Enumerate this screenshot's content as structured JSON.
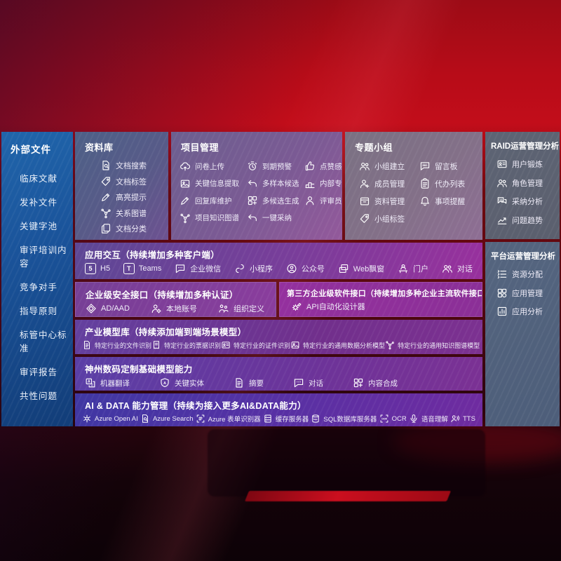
{
  "colors": {
    "background_red": "#c20d1a",
    "sidebar_blue": "#1a539a",
    "interaction_purple": "#98309d",
    "aidata_indigo": "#3f37a3",
    "text": "#ffffff"
  },
  "sidebar": {
    "title": "外部文件",
    "items": [
      "临床文献",
      "发补文件",
      "关键字池",
      "审评培训内容",
      "竞争对手",
      "指导原则",
      "标管中心标准",
      "审评报告",
      "共性问题"
    ]
  },
  "panels": {
    "repository": {
      "title": "资料库",
      "items": [
        {
          "icon": "doc-search",
          "label": "文档搜索"
        },
        {
          "icon": "tag",
          "label": "文档标签"
        },
        {
          "icon": "pencil",
          "label": "高亮提示"
        },
        {
          "icon": "graph",
          "label": "关系图谱"
        },
        {
          "icon": "doc-copy",
          "label": "文档分类"
        }
      ]
    },
    "project": {
      "title": "项目管理",
      "items": [
        {
          "icon": "cloud-upload",
          "label": "问卷上传"
        },
        {
          "icon": "alarm",
          "label": "到期预警"
        },
        {
          "icon": "thumb-up",
          "label": "点赞感谢"
        },
        {
          "icon": "image",
          "label": "关键信息提取"
        },
        {
          "icon": "curve-arrow",
          "label": "多样本候选"
        },
        {
          "icon": "podium",
          "label": "内部专家排名"
        },
        {
          "icon": "pencil",
          "label": "回复库维护"
        },
        {
          "icon": "puzzle",
          "label": "多候选生成"
        },
        {
          "icon": "person",
          "label": "评审员画像"
        },
        {
          "icon": "graph",
          "label": "项目知识图谱"
        },
        {
          "icon": "curve-arrow",
          "label": "一键采纳"
        }
      ]
    },
    "groups": {
      "title": "专题小组",
      "items": [
        {
          "icon": "people",
          "label": "小组建立"
        },
        {
          "icon": "bbs-board",
          "label": "留言板"
        },
        {
          "icon": "person-add",
          "label": "成员管理"
        },
        {
          "icon": "clipboard",
          "label": "代办列表"
        },
        {
          "icon": "archive",
          "label": "资料管理"
        },
        {
          "icon": "bell",
          "label": "事项提醒"
        },
        {
          "icon": "tag",
          "label": "小组标签"
        }
      ]
    },
    "raid": {
      "title": "RAID运营管理分析",
      "items": [
        {
          "icon": "id-card",
          "label": "用户锻炼"
        },
        {
          "icon": "people",
          "label": "角色管理"
        },
        {
          "icon": "chat-qa",
          "label": "采纳分析"
        },
        {
          "icon": "trend",
          "label": "问题趋势"
        }
      ]
    },
    "platform": {
      "title": "平台运营管理分析",
      "items": [
        {
          "icon": "allocate-list",
          "label": "资源分配"
        },
        {
          "icon": "app-grid",
          "label": "应用管理"
        },
        {
          "icon": "app-chart",
          "label": "应用分析"
        }
      ]
    },
    "interaction": {
      "title": "应用交互（持续增加多种客户端）",
      "items": [
        {
          "icon": "h5-logo",
          "badge": "5",
          "label": "H5"
        },
        {
          "icon": "teams-logo",
          "badge": "T",
          "label": "Teams"
        },
        {
          "icon": "bubble-dots",
          "label": "企业微信"
        },
        {
          "icon": "scurve",
          "label": "小程序"
        },
        {
          "icon": "person-circle",
          "label": "公众号"
        },
        {
          "icon": "stack",
          "label": "Web飘窗"
        },
        {
          "icon": "person-desk",
          "label": "门户"
        },
        {
          "icon": "people",
          "label": "对话"
        }
      ]
    },
    "security": {
      "title": "企业级安全接口（持续增加多种认证）",
      "items": [
        {
          "icon": "shield-diamond",
          "label": "AD/AAD"
        },
        {
          "icon": "person-gear",
          "label": "本地账号"
        },
        {
          "icon": "org-people",
          "label": "组织定义"
        }
      ]
    },
    "thirdparty": {
      "title": "第三方企业级软件接口（持续增加多种企业主流软件接口）",
      "items": [
        {
          "icon": "api-gear",
          "label": "API自动化设计器"
        }
      ]
    },
    "industry": {
      "title": "产业模型库（持续添加端到端场景模型）",
      "items": [
        {
          "icon": "doc-lines",
          "label": "特定行业的文件识别"
        },
        {
          "icon": "receipt",
          "label": "特定行业的票据识别"
        },
        {
          "icon": "id-card",
          "label": "特定行业的证件识别"
        },
        {
          "icon": "image",
          "label": "特定行业的通用数据分析模型"
        },
        {
          "icon": "graph",
          "label": "特定行业的通用知识图谱模型"
        }
      ]
    },
    "basemodel": {
      "title": "神州数码定制基础模型能力",
      "items": [
        {
          "icon": "translate",
          "label": "机器翻译"
        },
        {
          "icon": "shield-a",
          "label": "关键实体"
        },
        {
          "icon": "doc-lines",
          "label": "摘要"
        },
        {
          "icon": "bubble-dots",
          "label": "对话"
        },
        {
          "icon": "puzzle",
          "label": "内容合成"
        }
      ]
    },
    "aidata": {
      "title": "AI & DATA 能力管理（持续为接入更多AI&DATA能力）",
      "items": [
        {
          "icon": "openai-flower",
          "label": "Azure Open AI"
        },
        {
          "icon": "doc-search",
          "label": "Azure Search"
        },
        {
          "icon": "scan-brackets",
          "label": "Azure 表单识别器"
        },
        {
          "icon": "server-cabinet",
          "label": "缓存服务器"
        },
        {
          "icon": "sql-cylinder",
          "label": "SQL数据库服务器"
        },
        {
          "icon": "ocr-brackets",
          "label": "OCR"
        },
        {
          "icon": "mic",
          "label": "语音理解"
        },
        {
          "icon": "tts-wave",
          "label": "TTS"
        }
      ]
    }
  }
}
